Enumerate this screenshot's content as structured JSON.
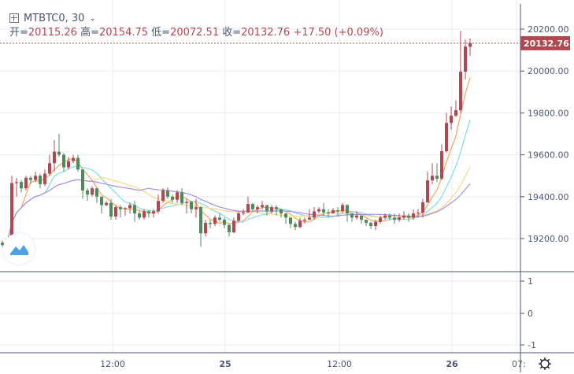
{
  "header": {
    "symbol": "MTBTC0, 30",
    "open_label": "开=",
    "open": "20115.26",
    "high_label": "高=",
    "high": "20154.75",
    "low_label": "低=",
    "low": "20072.51",
    "close_label": "收=",
    "close": "20132.76",
    "change": "+17.50 (+0.09%)"
  },
  "colors": {
    "up": "#b3474f",
    "down": "#4f8a5b",
    "ma5": "#f7a35c",
    "ma10": "#7ddde8",
    "ma20": "#ffd580",
    "ma30": "#a98ee0",
    "axis": "#4a5570",
    "grid": "#e6eef5"
  },
  "icons": {
    "add_symbol": "plus-square-icon",
    "dropdown": "chevron-down-icon",
    "logo": "mountain-logo-icon",
    "settings": "gear-icon"
  },
  "chart_data": {
    "type": "candlestick",
    "interval": "30",
    "y_ticks": [
      "20200.00",
      "20000.00",
      "19800.00",
      "19600.00",
      "19400.00",
      "19200.00"
    ],
    "ylim": [
      19060,
      20280
    ],
    "last_price_label": "20132.76",
    "x_ticks": [
      "12:00",
      "25",
      "12:00",
      "26",
      "07:"
    ],
    "indicator_ticks": [
      "1",
      "0",
      "-1"
    ],
    "moving_averages": [
      "MA5",
      "MA10",
      "MA20",
      "MA30"
    ],
    "ohlc": [
      [
        19180,
        19190,
        19160,
        19170
      ],
      [
        19170,
        19200,
        19165,
        19190
      ],
      [
        19190,
        19500,
        19185,
        19465
      ],
      [
        19465,
        19490,
        19400,
        19470
      ],
      [
        19470,
        19480,
        19420,
        19440
      ],
      [
        19440,
        19500,
        19430,
        19490
      ],
      [
        19490,
        19500,
        19460,
        19480
      ],
      [
        19480,
        19520,
        19470,
        19500
      ],
      [
        19500,
        19510,
        19440,
        19460
      ],
      [
        19460,
        19530,
        19450,
        19510
      ],
      [
        19510,
        19600,
        19500,
        19560
      ],
      [
        19560,
        19670,
        19520,
        19615
      ],
      [
        19615,
        19700,
        19590,
        19600
      ],
      [
        19600,
        19610,
        19520,
        19540
      ],
      [
        19540,
        19590,
        19530,
        19570
      ],
      [
        19570,
        19600,
        19560,
        19585
      ],
      [
        19585,
        19600,
        19520,
        19530
      ],
      [
        19530,
        19530,
        19390,
        19430
      ],
      [
        19430,
        19440,
        19380,
        19410
      ],
      [
        19410,
        19450,
        19400,
        19440
      ],
      [
        19440,
        19440,
        19370,
        19400
      ],
      [
        19400,
        19400,
        19320,
        19360
      ],
      [
        19360,
        19380,
        19355,
        19370
      ],
      [
        19370,
        19390,
        19290,
        19305
      ],
      [
        19305,
        19360,
        19290,
        19350
      ],
      [
        19350,
        19360,
        19300,
        19340
      ],
      [
        19340,
        19350,
        19310,
        19345
      ],
      [
        19345,
        19370,
        19320,
        19360
      ],
      [
        19360,
        19380,
        19280,
        19320
      ],
      [
        19320,
        19330,
        19290,
        19300
      ],
      [
        19300,
        19340,
        19290,
        19330
      ],
      [
        19330,
        19335,
        19300,
        19320
      ],
      [
        19320,
        19340,
        19300,
        19330
      ],
      [
        19330,
        19410,
        19320,
        19380
      ],
      [
        19380,
        19440,
        19370,
        19430
      ],
      [
        19430,
        19445,
        19390,
        19400
      ],
      [
        19400,
        19410,
        19370,
        19385
      ],
      [
        19385,
        19430,
        19370,
        19420
      ],
      [
        19420,
        19440,
        19360,
        19370
      ],
      [
        19370,
        19390,
        19320,
        19375
      ],
      [
        19375,
        19380,
        19320,
        19340
      ],
      [
        19340,
        19390,
        19300,
        19350
      ],
      [
        19350,
        19355,
        19160,
        19225
      ],
      [
        19225,
        19290,
        19210,
        19275
      ],
      [
        19275,
        19290,
        19250,
        19270
      ],
      [
        19270,
        19310,
        19260,
        19300
      ],
      [
        19300,
        19320,
        19280,
        19290
      ],
      [
        19290,
        19300,
        19250,
        19265
      ],
      [
        19265,
        19270,
        19210,
        19230
      ],
      [
        19230,
        19300,
        19225,
        19285
      ],
      [
        19285,
        19330,
        19280,
        19320
      ],
      [
        19320,
        19340,
        19310,
        19325
      ],
      [
        19325,
        19400,
        19320,
        19365
      ],
      [
        19365,
        19370,
        19330,
        19340
      ],
      [
        19340,
        19360,
        19320,
        19350
      ],
      [
        19350,
        19380,
        19340,
        19360
      ],
      [
        19360,
        19360,
        19310,
        19330
      ],
      [
        19330,
        19360,
        19320,
        19350
      ],
      [
        19350,
        19360,
        19310,
        19340
      ],
      [
        19340,
        19340,
        19300,
        19320
      ],
      [
        19320,
        19320,
        19270,
        19300
      ],
      [
        19300,
        19300,
        19250,
        19270
      ],
      [
        19270,
        19280,
        19240,
        19255
      ],
      [
        19255,
        19300,
        19250,
        19285
      ],
      [
        19285,
        19300,
        19270,
        19290
      ],
      [
        19290,
        19340,
        19290,
        19300
      ],
      [
        19300,
        19350,
        19290,
        19330
      ],
      [
        19330,
        19350,
        19320,
        19340
      ],
      [
        19340,
        19370,
        19310,
        19325
      ],
      [
        19325,
        19340,
        19300,
        19320
      ],
      [
        19320,
        19345,
        19320,
        19335
      ],
      [
        19335,
        19350,
        19310,
        19330
      ],
      [
        19330,
        19370,
        19320,
        19360
      ],
      [
        19360,
        19365,
        19280,
        19320
      ],
      [
        19320,
        19320,
        19280,
        19300
      ],
      [
        19300,
        19330,
        19290,
        19310
      ],
      [
        19310,
        19310,
        19270,
        19290
      ],
      [
        19290,
        19290,
        19260,
        19275
      ],
      [
        19275,
        19280,
        19245,
        19260
      ],
      [
        19260,
        19290,
        19240,
        19280
      ],
      [
        19280,
        19310,
        19270,
        19300
      ],
      [
        19300,
        19320,
        19290,
        19310
      ],
      [
        19310,
        19320,
        19290,
        19300
      ],
      [
        19300,
        19320,
        19270,
        19290
      ],
      [
        19290,
        19320,
        19280,
        19300
      ],
      [
        19300,
        19330,
        19290,
        19310
      ],
      [
        19310,
        19320,
        19280,
        19300
      ],
      [
        19300,
        19340,
        19290,
        19320
      ],
      [
        19320,
        19340,
        19300,
        19324
      ],
      [
        19324,
        19390,
        19300,
        19373
      ],
      [
        19373,
        19520,
        19370,
        19478
      ],
      [
        19478,
        19560,
        19460,
        19500
      ],
      [
        19500,
        19560,
        19470,
        19486
      ],
      [
        19486,
        19650,
        19480,
        19617
      ],
      [
        19617,
        19800,
        19610,
        19752
      ],
      [
        19752,
        19830,
        19720,
        19787
      ],
      [
        19787,
        19860,
        19780,
        19813
      ],
      [
        19813,
        20192,
        19800,
        19997
      ],
      [
        19997,
        20150,
        19960,
        20117
      ],
      [
        20115.26,
        20154.75,
        20072.51,
        20132.76
      ]
    ]
  }
}
